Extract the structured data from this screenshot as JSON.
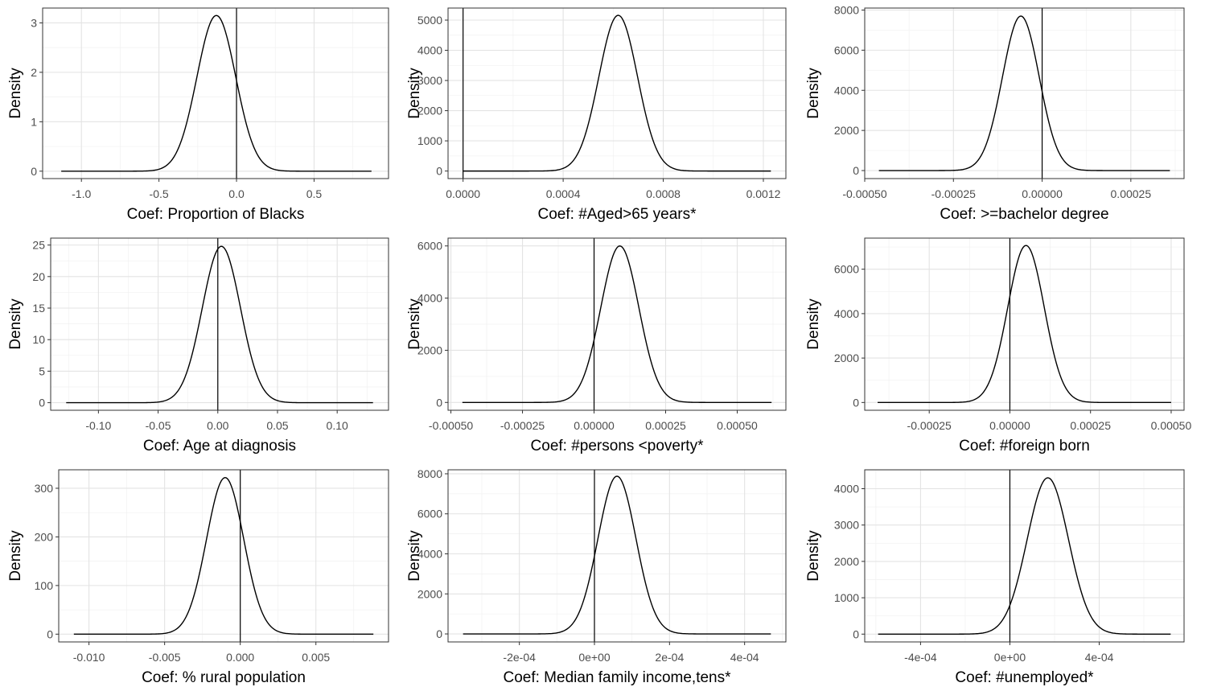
{
  "chart_data": [
    {
      "type": "line",
      "xlabel": "Coef: Proportion of Blacks",
      "ylabel": "Density",
      "mean": -0.13,
      "sd": 0.125,
      "peak": 3.15,
      "x_range": [
        -1.13,
        0.87
      ],
      "xlim": [
        -1.25,
        0.98
      ],
      "xticks": [
        -1.0,
        -0.5,
        0.0,
        0.5
      ],
      "xtick_labels": [
        "-1.0",
        "-0.5",
        "0.0",
        "0.5"
      ],
      "ylim": [
        -0.15,
        3.3
      ],
      "yticks": [
        0,
        1,
        2,
        3
      ],
      "ytick_labels": [
        "0",
        "1",
        "2",
        "3"
      ],
      "vline": 0,
      "grid": true
    },
    {
      "type": "line",
      "xlabel": "Coef: #Aged>65 years*",
      "ylabel": "Density",
      "mean": 0.00062,
      "sd": 7.72e-05,
      "peak": 5160,
      "x_range": [
        0.0,
        0.00123
      ],
      "xlim": [
        -6e-05,
        0.00129
      ],
      "xticks": [
        0.0,
        0.0004,
        0.0008,
        0.0012
      ],
      "xtick_labels": [
        "0.0000",
        "0.0004",
        "0.0008",
        "0.0012"
      ],
      "ylim": [
        -250,
        5400
      ],
      "yticks": [
        0,
        1000,
        2000,
        3000,
        4000,
        5000
      ],
      "ytick_labels": [
        "0",
        "1000",
        "2000",
        "3000",
        "4000",
        "5000"
      ],
      "vline": 0,
      "grid": true
    },
    {
      "type": "line",
      "xlabel": "Coef: >=bachelor degree",
      "ylabel": "Density",
      "mean": -6e-05,
      "sd": 5.18e-05,
      "peak": 7700,
      "x_range": [
        -0.00046,
        0.00036
      ],
      "xlim": [
        -0.0005,
        0.0004
      ],
      "xticks": [
        -0.0005,
        -0.00025,
        0.0,
        0.00025
      ],
      "xtick_labels": [
        "-0.00050",
        "-0.00025",
        "0.00000",
        "0.00025"
      ],
      "ylim": [
        -400,
        8100
      ],
      "yticks": [
        0,
        2000,
        4000,
        6000,
        8000
      ],
      "ytick_labels": [
        "0",
        "2000",
        "4000",
        "6000",
        "8000"
      ],
      "vline": 0,
      "grid": true
    },
    {
      "type": "line",
      "xlabel": "Coef: Age at diagnosis",
      "ylabel": "Density",
      "mean": 0.003,
      "sd": 0.016,
      "peak": 24.8,
      "x_range": [
        -0.127,
        0.13
      ],
      "xlim": [
        -0.14,
        0.143
      ],
      "xticks": [
        -0.1,
        -0.05,
        0.0,
        0.05,
        0.1
      ],
      "xtick_labels": [
        "-0.10",
        "-0.05",
        "0.00",
        "0.05",
        "0.10"
      ],
      "ylim": [
        -1.2,
        26.1
      ],
      "yticks": [
        0,
        5,
        10,
        15,
        20,
        25
      ],
      "ytick_labels": [
        "0",
        "5",
        "10",
        "15",
        "20",
        "25"
      ],
      "vline": 0,
      "grid": true
    },
    {
      "type": "line",
      "xlabel": "Coef: #persons <poverty*",
      "ylabel": "Density",
      "mean": 9e-05,
      "sd": 6.65e-05,
      "peak": 6000,
      "x_range": [
        -0.00046,
        0.00062
      ],
      "xlim": [
        -0.00051,
        0.00067
      ],
      "xticks": [
        -0.0005,
        -0.00025,
        0.0,
        0.00025,
        0.0005
      ],
      "xtick_labels": [
        "-0.00050",
        "-0.00025",
        "0.00000",
        "0.00025",
        "0.00050"
      ],
      "ylim": [
        -300,
        6300
      ],
      "yticks": [
        0,
        2000,
        4000,
        6000
      ],
      "ytick_labels": [
        "0",
        "2000",
        "4000",
        "6000"
      ],
      "vline": 0,
      "grid": true
    },
    {
      "type": "line",
      "xlabel": "Coef: #foreign born",
      "ylabel": "Density",
      "mean": 5e-05,
      "sd": 5.65e-05,
      "peak": 7070,
      "x_range": [
        -0.00041,
        0.0005
      ],
      "xlim": [
        -0.00045,
        0.00054
      ],
      "xticks": [
        -0.00025,
        0.0,
        0.00025,
        0.0005
      ],
      "xtick_labels": [
        "-0.00025",
        "0.00000",
        "0.00025",
        "0.00050"
      ],
      "ylim": [
        -350,
        7400
      ],
      "yticks": [
        0,
        2000,
        4000,
        6000
      ],
      "ytick_labels": [
        "0",
        "2000",
        "4000",
        "6000"
      ],
      "vline": 0,
      "grid": true
    },
    {
      "type": "line",
      "xlabel": "Coef: % rural population",
      "ylabel": "Density",
      "mean": -0.001,
      "sd": 0.00123,
      "peak": 322,
      "x_range": [
        -0.011,
        0.0088
      ],
      "xlim": [
        -0.012,
        0.0098
      ],
      "xticks": [
        -0.01,
        -0.005,
        0.0,
        0.005
      ],
      "xtick_labels": [
        "-0.010",
        "-0.005",
        "0.000",
        "0.005"
      ],
      "ylim": [
        -16,
        338
      ],
      "yticks": [
        0,
        100,
        200,
        300
      ],
      "ytick_labels": [
        "0",
        "100",
        "200",
        "300"
      ],
      "vline": 0,
      "grid": true
    },
    {
      "type": "line",
      "xlabel": "Coef: Median family income,tens*",
      "ylabel": "Density",
      "mean": 6e-05,
      "sd": 5.05e-05,
      "peak": 7880,
      "x_range": [
        -0.00035,
        0.00047
      ],
      "xlim": [
        -0.00039,
        0.00051
      ],
      "xticks": [
        -0.0002,
        0.0,
        0.0002,
        0.0004
      ],
      "xtick_labels": [
        "-2e-04",
        "0e+00",
        "2e-04",
        "4e-04"
      ],
      "ylim": [
        -400,
        8200
      ],
      "yticks": [
        0,
        2000,
        4000,
        6000,
        8000
      ],
      "ytick_labels": [
        "0",
        "2000",
        "4000",
        "6000",
        "8000"
      ],
      "vline": 0,
      "grid": true
    },
    {
      "type": "line",
      "xlabel": "Coef: #unemployed*",
      "ylabel": "Density",
      "mean": 0.00017,
      "sd": 9.25e-05,
      "peak": 4300,
      "x_range": [
        -0.00059,
        0.00072
      ],
      "xlim": [
        -0.00065,
        0.00078
      ],
      "xticks": [
        -0.0004,
        0.0,
        0.0004
      ],
      "xtick_labels": [
        "-4e-04",
        "0e+00",
        "4e-04"
      ],
      "ylim": [
        -215,
        4520
      ],
      "yticks": [
        0,
        1000,
        2000,
        3000,
        4000
      ],
      "ytick_labels": [
        "0",
        "1000",
        "2000",
        "3000",
        "4000"
      ],
      "vline": 0,
      "grid": true
    }
  ]
}
